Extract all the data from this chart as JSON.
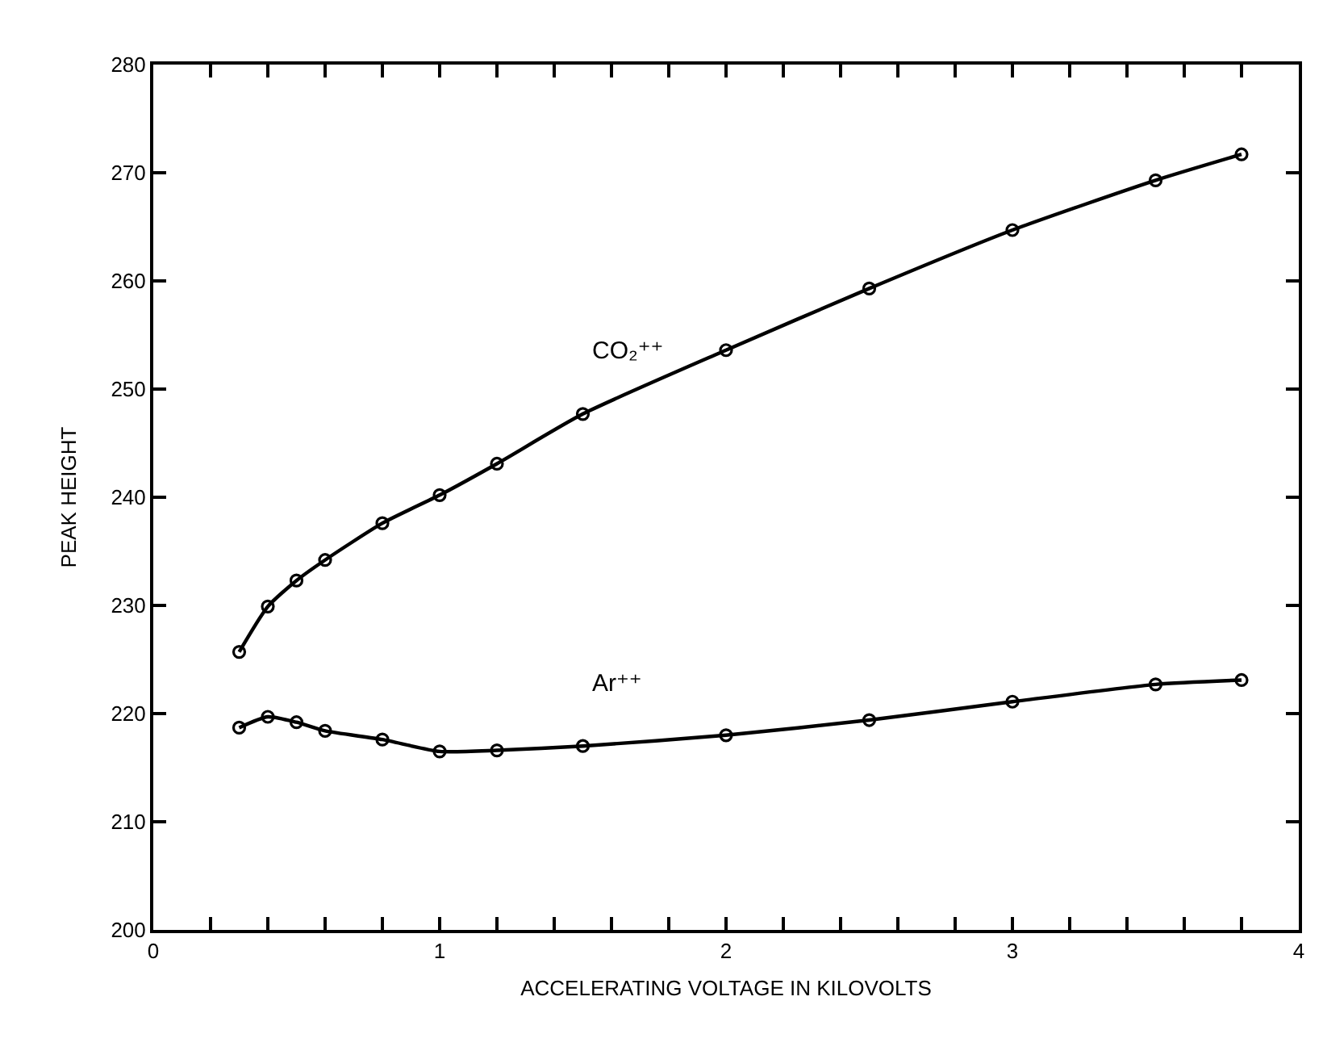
{
  "chart_data": {
    "type": "line",
    "xlabel": "ACCELERATING VOLTAGE IN KILOVOLTS",
    "ylabel": "PEAK HEIGHT",
    "x": [
      0.3,
      0.4,
      0.5,
      0.6,
      0.8,
      1.0,
      1.2,
      1.5,
      2.0,
      2.5,
      3.0,
      3.5,
      3.8
    ],
    "series": [
      {
        "name": "CO₂⁺⁺",
        "color": "#000000",
        "values": [
          225.7,
          229.9,
          232.3,
          234.2,
          237.6,
          240.2,
          243.1,
          247.7,
          253.6,
          259.3,
          264.7,
          269.3,
          271.7
        ]
      },
      {
        "name": "Ar⁺⁺",
        "color": "#000000",
        "values": [
          218.7,
          219.7,
          219.2,
          218.4,
          217.6,
          216.5,
          216.6,
          217.0,
          218.0,
          219.4,
          221.1,
          222.7,
          223.1
        ]
      }
    ],
    "xlim": [
      0,
      4
    ],
    "xticks": [
      0,
      {
        "value": 0.2,
        "label": null
      },
      {
        "value": 0.4,
        "label": null
      },
      {
        "value": 0.6,
        "label": null
      },
      {
        "value": 0.8,
        "label": null
      },
      1,
      {
        "value": 1.2,
        "label": null
      },
      {
        "value": 1.4,
        "label": null
      },
      {
        "value": 1.6,
        "label": null
      },
      {
        "value": 1.8,
        "label": null
      },
      2,
      {
        "value": 2.2,
        "label": null
      },
      {
        "value": 2.4,
        "label": null
      },
      {
        "value": 2.6,
        "label": null
      },
      {
        "value": 2.8,
        "label": null
      },
      3,
      {
        "value": 3.2,
        "label": null
      },
      {
        "value": 3.4,
        "label": null
      },
      {
        "value": 3.6,
        "label": null
      },
      {
        "value": 3.8,
        "label": null
      },
      4
    ],
    "ylim": [
      200,
      280
    ],
    "yticks": [
      200,
      210,
      220,
      230,
      240,
      250,
      260,
      270,
      280
    ],
    "grid": false,
    "legend": false,
    "marker": "circle",
    "line_style": "solid"
  }
}
